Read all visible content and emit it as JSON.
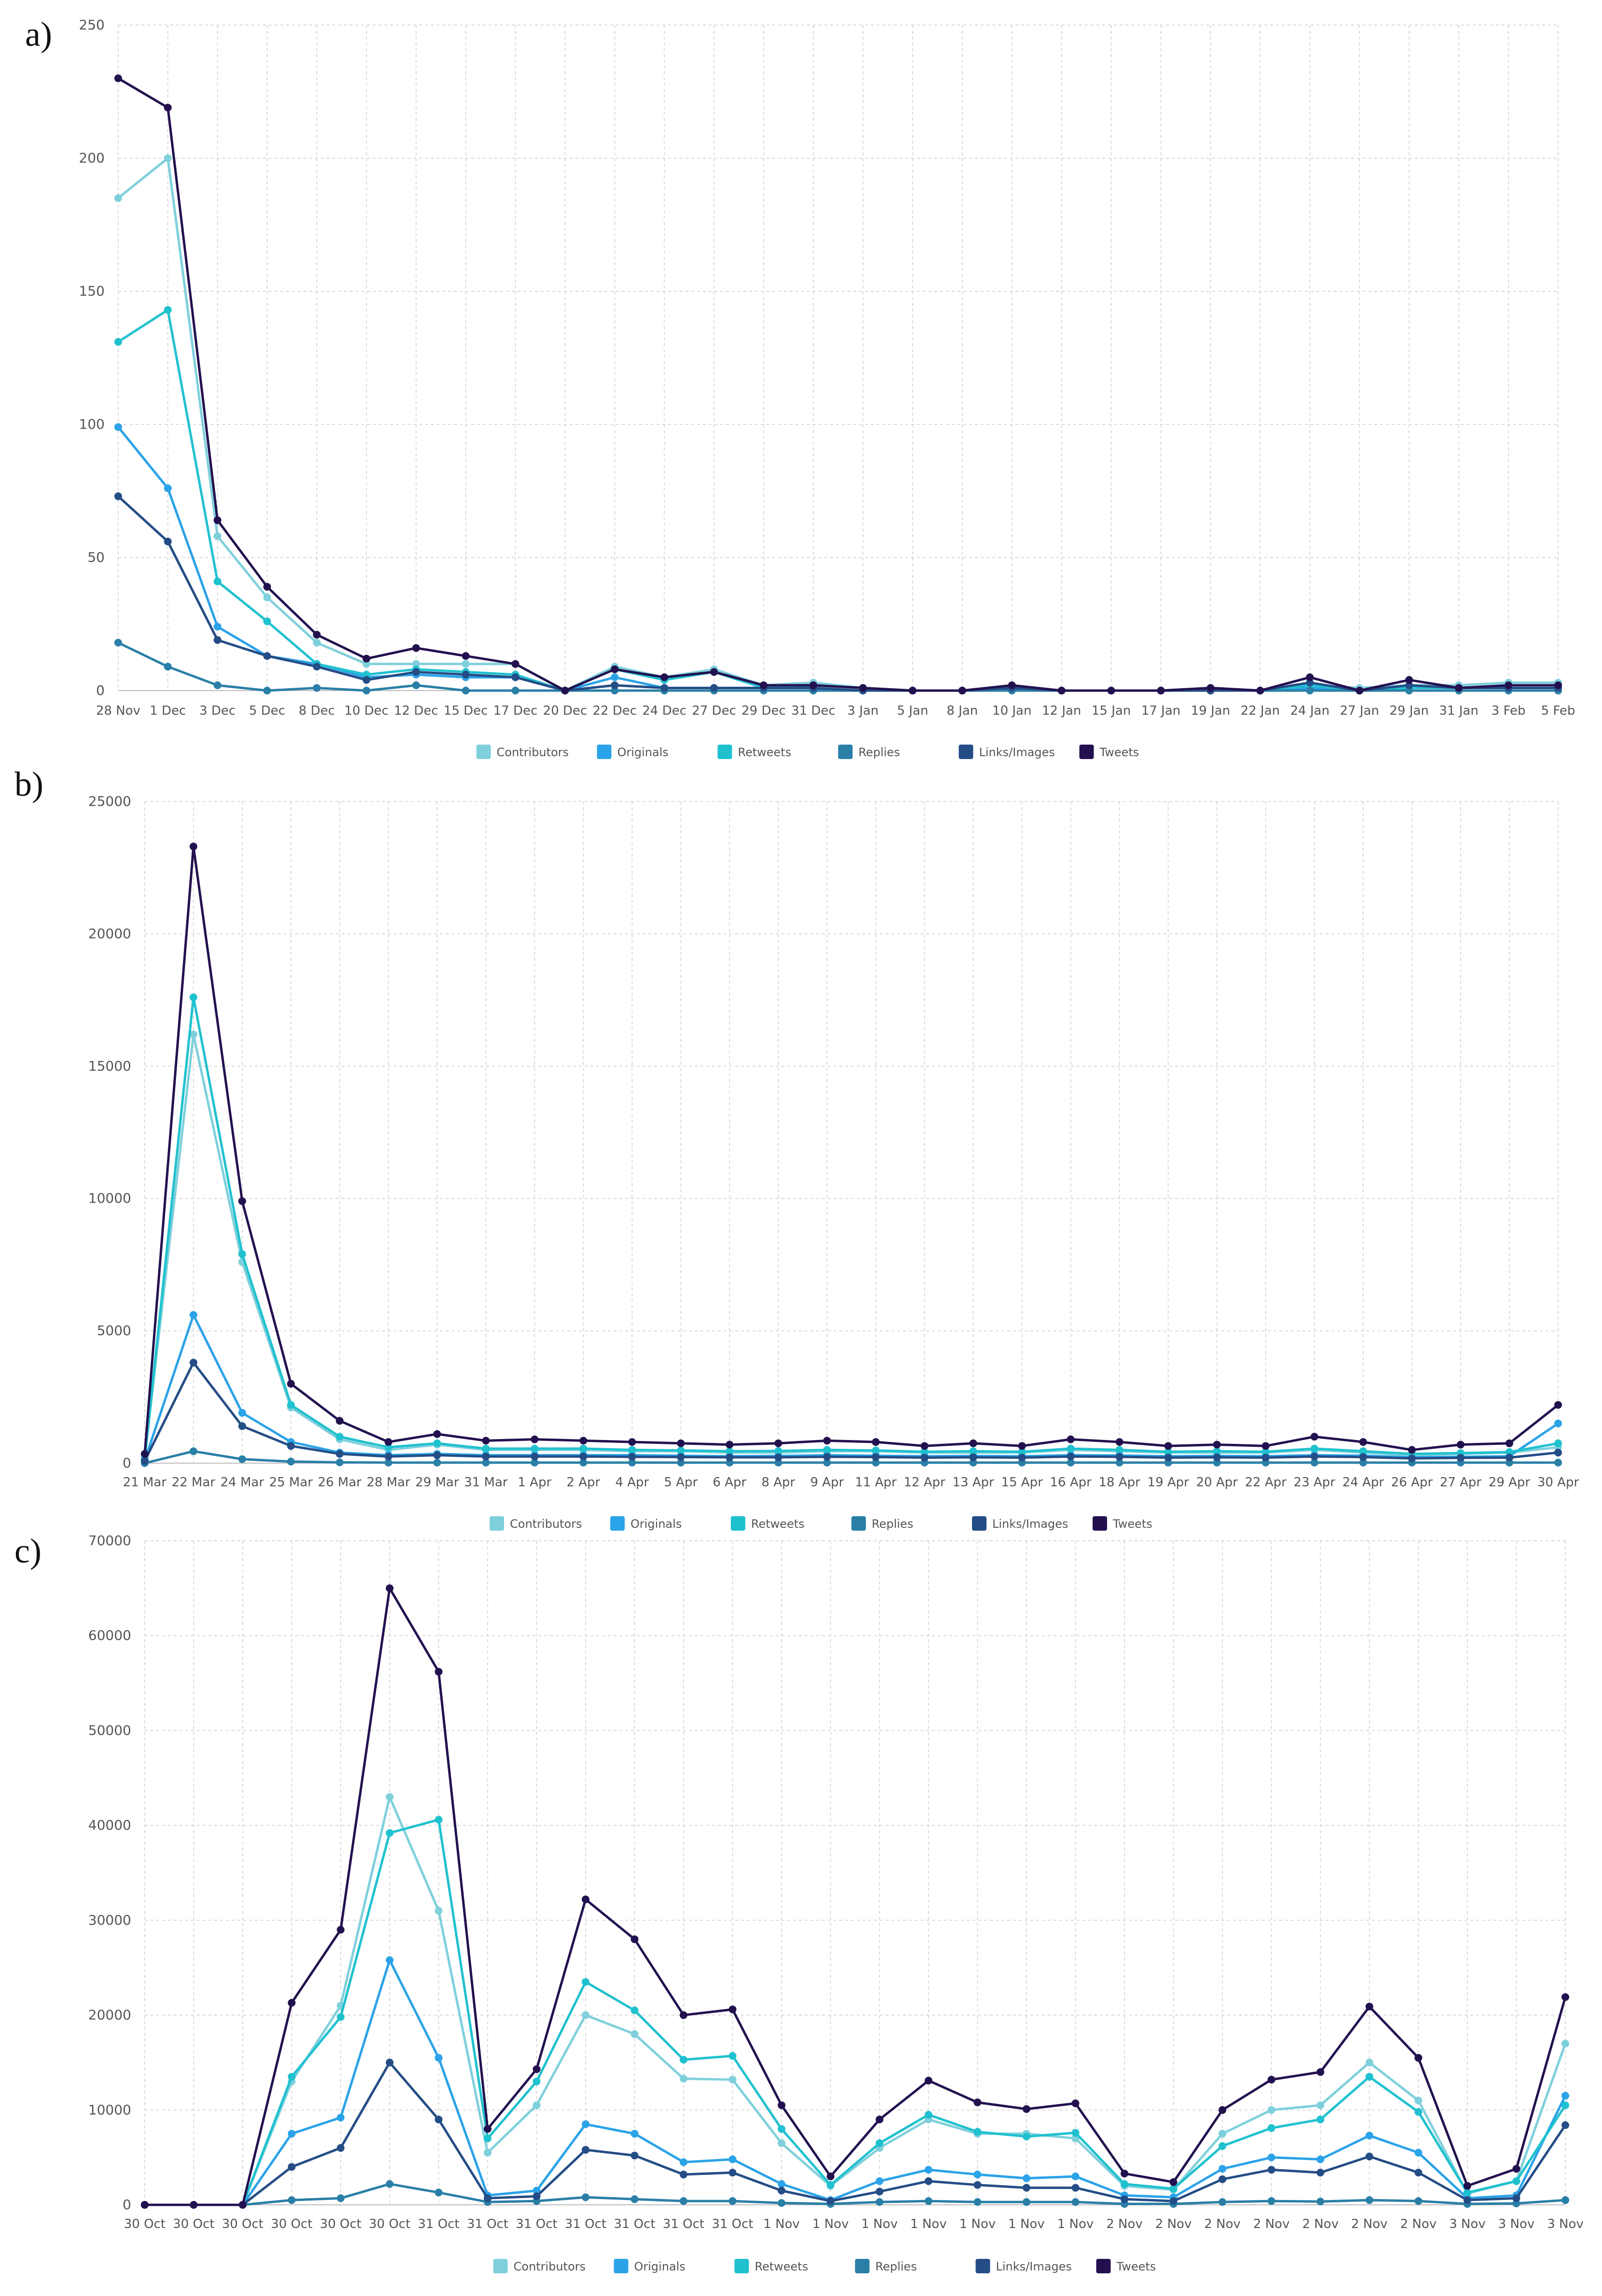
{
  "panel_labels": [
    "a)",
    "b)",
    "c)"
  ],
  "colors": {
    "Contributors": "#7fd0dc",
    "Originals": "#2ba3e8",
    "Retweets": "#20c1cf",
    "Replies": "#2a7fa6",
    "Links/Images": "#244d86",
    "Tweets": "#23114f",
    "grid": "#d9d9d9"
  },
  "chart_data": [
    {
      "type": "line",
      "panel": "a)",
      "ylim": [
        0,
        250
      ],
      "yticks": [
        0,
        50,
        100,
        150,
        200,
        250
      ],
      "x_tick_labels": [
        "28 Nov",
        "1 Dec",
        "3 Dec",
        "5 Dec",
        "8 Dec",
        "10 Dec",
        "12 Dec",
        "15 Dec",
        "17 Dec",
        "20 Dec",
        "22 Dec",
        "24 Dec",
        "27 Dec",
        "29 Dec",
        "31 Dec",
        "3 Jan",
        "5 Jan",
        "8 Jan",
        "10 Jan",
        "12 Jan",
        "15 Jan",
        "17 Jan",
        "19 Jan",
        "22 Jan",
        "24 Jan",
        "27 Jan",
        "29 Jan",
        "31 Jan",
        "3 Feb",
        "5 Feb"
      ],
      "legend": [
        "Contributors",
        "Originals",
        "Retweets",
        "Replies",
        "Links/Images",
        "Tweets"
      ],
      "series": [
        {
          "name": "Contributors",
          "values": [
            185,
            200,
            58,
            35,
            18,
            10,
            10,
            10,
            10,
            0,
            9,
            5,
            8,
            2,
            3,
            1,
            0,
            0,
            1,
            0,
            0,
            0,
            1,
            0,
            2,
            1,
            2,
            2,
            3,
            3
          ]
        },
        {
          "name": "Originals",
          "values": [
            99,
            76,
            24,
            13,
            10,
            5,
            6,
            5,
            5,
            0,
            5,
            1,
            1,
            1,
            1,
            0,
            0,
            0,
            1,
            0,
            0,
            0,
            0,
            0,
            1,
            0,
            1,
            1,
            1,
            1
          ]
        },
        {
          "name": "Retweets",
          "values": [
            131,
            143,
            41,
            26,
            10,
            6,
            8,
            7,
            6,
            0,
            8,
            4,
            7,
            1,
            2,
            1,
            0,
            0,
            1,
            0,
            0,
            0,
            1,
            0,
            2,
            0,
            1,
            1,
            2,
            2
          ]
        },
        {
          "name": "Replies",
          "values": [
            18,
            9,
            2,
            0,
            1,
            0,
            2,
            0,
            0,
            0,
            0,
            0,
            0,
            0,
            0,
            0,
            0,
            0,
            0,
            0,
            0,
            0,
            0,
            0,
            0,
            0,
            0,
            0,
            0,
            0
          ]
        },
        {
          "name": "Links/Images",
          "values": [
            73,
            56,
            19,
            13,
            9,
            4,
            7,
            6,
            5,
            0,
            2,
            1,
            1,
            1,
            1,
            0,
            0,
            0,
            1,
            0,
            0,
            0,
            0,
            0,
            3,
            0,
            2,
            1,
            1,
            1
          ]
        },
        {
          "name": "Tweets",
          "values": [
            230,
            219,
            64,
            39,
            21,
            12,
            16,
            13,
            10,
            0,
            8,
            5,
            7,
            2,
            2,
            1,
            0,
            0,
            2,
            0,
            0,
            0,
            1,
            0,
            5,
            0,
            4,
            1,
            2,
            2
          ]
        }
      ]
    },
    {
      "type": "line",
      "panel": "b)",
      "ylim": [
        0,
        25000
      ],
      "yticks": [
        0,
        5000,
        10000,
        15000,
        20000,
        25000
      ],
      "x_tick_labels": [
        "21 Mar",
        "22 Mar",
        "24 Mar",
        "25 Mar",
        "26 Mar",
        "28 Mar",
        "29 Mar",
        "31 Mar",
        "1 Apr",
        "2 Apr",
        "4 Apr",
        "5 Apr",
        "6 Apr",
        "8 Apr",
        "9 Apr",
        "11 Apr",
        "12 Apr",
        "13 Apr",
        "15 Apr",
        "16 Apr",
        "18 Apr",
        "19 Apr",
        "20 Apr",
        "22 Apr",
        "23 Apr",
        "24 Apr",
        "26 Apr",
        "27 Apr",
        "29 Apr",
        "30 Apr"
      ],
      "legend": [
        "Contributors",
        "Originals",
        "Retweets",
        "Replies",
        "Links/Images",
        "Tweets"
      ],
      "series": [
        {
          "name": "Contributors",
          "values": [
            200,
            16200,
            7600,
            2100,
            900,
            500,
            700,
            500,
            500,
            500,
            450,
            450,
            400,
            400,
            450,
            450,
            400,
            400,
            400,
            500,
            450,
            400,
            400,
            400,
            500,
            400,
            300,
            350,
            400,
            600
          ]
        },
        {
          "name": "Originals",
          "values": [
            100,
            5600,
            1900,
            800,
            400,
            300,
            350,
            300,
            300,
            300,
            300,
            280,
            260,
            270,
            300,
            280,
            260,
            270,
            260,
            300,
            290,
            260,
            270,
            260,
            300,
            280,
            220,
            240,
            260,
            1500
          ]
        },
        {
          "name": "Retweets",
          "values": [
            150,
            17600,
            7900,
            2200,
            1000,
            600,
            750,
            550,
            550,
            550,
            500,
            480,
            450,
            460,
            500,
            480,
            430,
            450,
            430,
            550,
            500,
            430,
            450,
            430,
            550,
            450,
            350,
            380,
            420,
            750
          ]
        },
        {
          "name": "Replies",
          "values": [
            0,
            450,
            150,
            60,
            30,
            20,
            20,
            20,
            20,
            20,
            20,
            20,
            20,
            20,
            20,
            20,
            20,
            20,
            20,
            20,
            20,
            20,
            20,
            20,
            20,
            20,
            20,
            20,
            20,
            20
          ]
        },
        {
          "name": "Links/Images",
          "values": [
            80,
            3800,
            1400,
            650,
            350,
            250,
            300,
            250,
            250,
            250,
            240,
            230,
            220,
            220,
            240,
            230,
            210,
            220,
            210,
            250,
            240,
            210,
            220,
            210,
            250,
            230,
            180,
            200,
            210,
            400
          ]
        },
        {
          "name": "Tweets",
          "values": [
            350,
            23300,
            9900,
            3000,
            1600,
            800,
            1100,
            850,
            900,
            850,
            800,
            750,
            700,
            750,
            850,
            800,
            650,
            750,
            650,
            900,
            800,
            650,
            700,
            650,
            1000,
            800,
            500,
            700,
            750,
            2200
          ]
        }
      ]
    },
    {
      "type": "line",
      "panel": "c)",
      "ylim": [
        0,
        70000
      ],
      "yticks": [
        0,
        10000,
        20000,
        30000,
        40000,
        50000,
        60000,
        70000
      ],
      "x_tick_labels": [
        "30 Oct",
        "30 Oct",
        "30 Oct",
        "30 Oct",
        "30 Oct",
        "30 Oct",
        "31 Oct",
        "31 Oct",
        "31 Oct",
        "31 Oct",
        "31 Oct",
        "31 Oct",
        "31 Oct",
        "1 Nov",
        "1 Nov",
        "1 Nov",
        "1 Nov",
        "1 Nov",
        "1 Nov",
        "1 Nov",
        "2 Nov",
        "2 Nov",
        "2 Nov",
        "2 Nov",
        "2 Nov",
        "2 Nov",
        "2 Nov",
        "3 Nov",
        "3 Nov",
        "3 Nov"
      ],
      "legend": [
        "Contributors",
        "Originals",
        "Retweets",
        "Replies",
        "Links/Images",
        "Tweets"
      ],
      "series": [
        {
          "name": "Contributors",
          "values": [
            0,
            0,
            0,
            13000,
            21000,
            43000,
            31000,
            5500,
            10500,
            20000,
            18000,
            13300,
            13200,
            6500,
            2000,
            6000,
            9000,
            7500,
            7500,
            7000,
            2000,
            1600,
            7500,
            10000,
            10500,
            15000,
            11000,
            1200,
            2500,
            17000
          ]
        },
        {
          "name": "Originals",
          "values": [
            0,
            0,
            0,
            7500,
            9200,
            25800,
            15500,
            1000,
            1500,
            8500,
            7500,
            4500,
            4800,
            2200,
            500,
            2500,
            3700,
            3200,
            2800,
            3000,
            1000,
            800,
            3800,
            5000,
            4800,
            7300,
            5500,
            700,
            1000,
            11500
          ]
        },
        {
          "name": "Retweets",
          "values": [
            0,
            0,
            0,
            13500,
            19800,
            39200,
            40600,
            7000,
            13000,
            23500,
            20500,
            15300,
            15700,
            8000,
            2100,
            6500,
            9500,
            7700,
            7200,
            7600,
            2200,
            1700,
            6200,
            8100,
            9000,
            13500,
            9800,
            1300,
            2500,
            10500
          ]
        },
        {
          "name": "Replies",
          "values": [
            0,
            0,
            0,
            500,
            700,
            2200,
            1300,
            300,
            400,
            800,
            600,
            400,
            400,
            200,
            100,
            300,
            400,
            300,
            300,
            300,
            100,
            100,
            300,
            400,
            350,
            500,
            400,
            100,
            150,
            500
          ]
        },
        {
          "name": "Links/Images",
          "values": [
            0,
            0,
            0,
            4000,
            6000,
            15000,
            9000,
            700,
            900,
            5800,
            5200,
            3200,
            3400,
            1500,
            400,
            1400,
            2500,
            2100,
            1800,
            1800,
            600,
            400,
            2700,
            3700,
            3400,
            5100,
            3400,
            500,
            700,
            8400
          ]
        },
        {
          "name": "Tweets",
          "values": [
            0,
            0,
            0,
            21300,
            29000,
            65000,
            56200,
            8000,
            14300,
            32200,
            28000,
            20000,
            20600,
            10500,
            3000,
            9000,
            13100,
            10800,
            10100,
            10700,
            3300,
            2400,
            10000,
            13200,
            14000,
            20900,
            15500,
            2000,
            3800,
            21900
          ]
        }
      ]
    }
  ]
}
